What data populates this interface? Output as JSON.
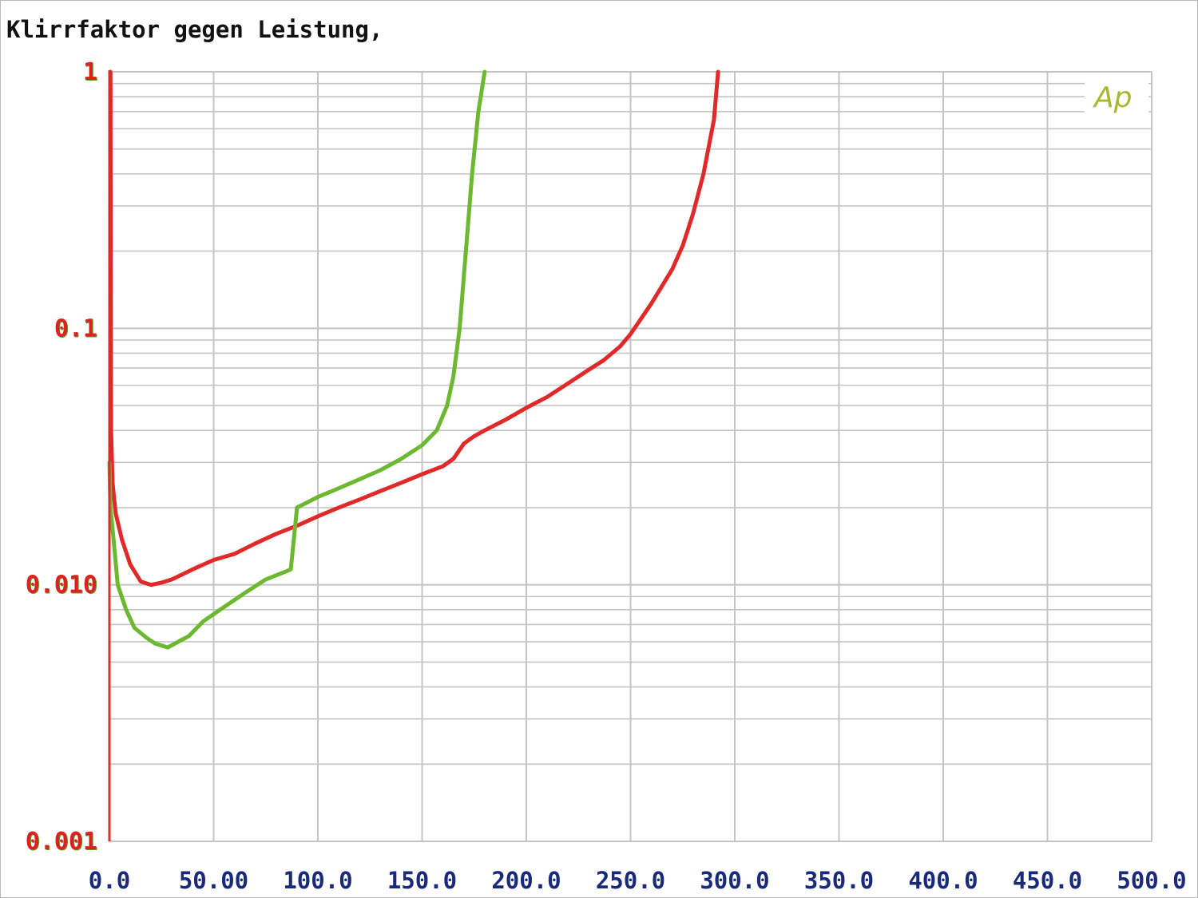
{
  "chart_data": {
    "type": "line",
    "title": "Klirrfaktor gegen Leistung,",
    "xlabel": "",
    "ylabel": "",
    "xlim": [
      0,
      500
    ],
    "ylim": [
      0.001,
      1
    ],
    "yscale": "log",
    "grid": true,
    "x_ticks": [
      0,
      50,
      100,
      150,
      200,
      250,
      300,
      350,
      400,
      450,
      500
    ],
    "x_tick_labels": [
      "0.0",
      "50.00",
      "100.0",
      "150.0",
      "200.0",
      "250.0",
      "300.0",
      "350.0",
      "400.0",
      "450.0",
      "500.0"
    ],
    "y_ticks": [
      1,
      0.1,
      0.01,
      0.001
    ],
    "y_tick_labels": [
      "1",
      "0.1",
      "0.010",
      "0.001"
    ],
    "watermark": "Ap",
    "colors": {
      "grid": "#c4c4c4",
      "x_tick_text": "#1a2a7a",
      "y_tick_text": "#e02020",
      "y_tick_shadow": "#5aa02a",
      "watermark": "#a8b830",
      "axis": "#d03030"
    },
    "series": [
      {
        "color": "#e02a2a",
        "points": [
          [
            0.5,
            1.0
          ],
          [
            0.6,
            0.2
          ],
          [
            0.8,
            0.04
          ],
          [
            1.5,
            0.025
          ],
          [
            3,
            0.019
          ],
          [
            6,
            0.015
          ],
          [
            10,
            0.012
          ],
          [
            15,
            0.0103
          ],
          [
            20,
            0.01
          ],
          [
            25,
            0.0102
          ],
          [
            30,
            0.0105
          ],
          [
            40,
            0.0115
          ],
          [
            50,
            0.0125
          ],
          [
            60,
            0.0132
          ],
          [
            70,
            0.0145
          ],
          [
            80,
            0.0158
          ],
          [
            90,
            0.017
          ],
          [
            100,
            0.0185
          ],
          [
            110,
            0.02
          ],
          [
            120,
            0.0215
          ],
          [
            130,
            0.0232
          ],
          [
            140,
            0.025
          ],
          [
            150,
            0.027
          ],
          [
            160,
            0.029
          ],
          [
            165,
            0.031
          ],
          [
            170,
            0.0355
          ],
          [
            175,
            0.038
          ],
          [
            180,
            0.04
          ],
          [
            190,
            0.044
          ],
          [
            200,
            0.049
          ],
          [
            210,
            0.054
          ],
          [
            220,
            0.061
          ],
          [
            230,
            0.069
          ],
          [
            237,
            0.075
          ],
          [
            245,
            0.085
          ],
          [
            250,
            0.095
          ],
          [
            260,
            0.125
          ],
          [
            270,
            0.17
          ],
          [
            275,
            0.21
          ],
          [
            280,
            0.28
          ],
          [
            285,
            0.4
          ],
          [
            290,
            0.65
          ],
          [
            292,
            1.0
          ]
        ]
      },
      {
        "color": "#6cb830",
        "points": [
          [
            0,
            0.03
          ],
          [
            0.5,
            0.02
          ],
          [
            2,
            0.015
          ],
          [
            4,
            0.01
          ],
          [
            8,
            0.008
          ],
          [
            12,
            0.0068
          ],
          [
            18,
            0.0062
          ],
          [
            22,
            0.0059
          ],
          [
            28,
            0.0057
          ],
          [
            33,
            0.006
          ],
          [
            38,
            0.0063
          ],
          [
            45,
            0.0072
          ],
          [
            55,
            0.0082
          ],
          [
            65,
            0.0093
          ],
          [
            75,
            0.0105
          ],
          [
            85,
            0.0113
          ],
          [
            87,
            0.0115
          ],
          [
            90,
            0.02
          ],
          [
            100,
            0.022
          ],
          [
            110,
            0.0238
          ],
          [
            120,
            0.0258
          ],
          [
            130,
            0.028
          ],
          [
            140,
            0.031
          ],
          [
            150,
            0.035
          ],
          [
            157,
            0.04
          ],
          [
            162,
            0.05
          ],
          [
            165,
            0.065
          ],
          [
            168,
            0.1
          ],
          [
            171,
            0.2
          ],
          [
            174,
            0.4
          ],
          [
            177,
            0.7
          ],
          [
            180,
            1.0
          ]
        ]
      }
    ]
  }
}
